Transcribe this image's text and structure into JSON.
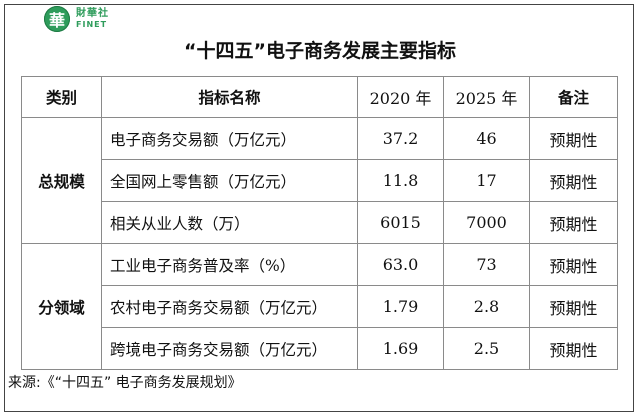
{
  "logo": {
    "mark": "華",
    "name_cn": "財華社",
    "name_en": "FINET"
  },
  "title": "“十四五”电子商务发展主要指标",
  "table": {
    "headers": [
      "类别",
      "指标名称",
      "2020 年",
      "2025 年",
      "备注"
    ],
    "groups": [
      {
        "category": "总规模",
        "rows": [
          {
            "indicator": "电子商务交易额（万亿元）",
            "y2020": "37.2",
            "y2025": "46",
            "note": "预期性"
          },
          {
            "indicator": "全国网上零售额（万亿元）",
            "y2020": "11.8",
            "y2025": "17",
            "note": "预期性"
          },
          {
            "indicator": "相关从业人数（万）",
            "y2020": "6015",
            "y2025": "7000",
            "note": "预期性"
          }
        ]
      },
      {
        "category": "分领域",
        "rows": [
          {
            "indicator": "工业电子商务普及率（%）",
            "y2020": "63.0",
            "y2025": "73",
            "note": "预期性"
          },
          {
            "indicator": "农村电子商务交易额（万亿元）",
            "y2020": "1.79",
            "y2025": "2.8",
            "note": "预期性"
          },
          {
            "indicator": "跨境电子商务交易额（万亿元）",
            "y2020": "1.69",
            "y2025": "2.5",
            "note": "预期性"
          }
        ]
      }
    ]
  },
  "source": "来源:《“十四五” 电子商务发展规划》"
}
